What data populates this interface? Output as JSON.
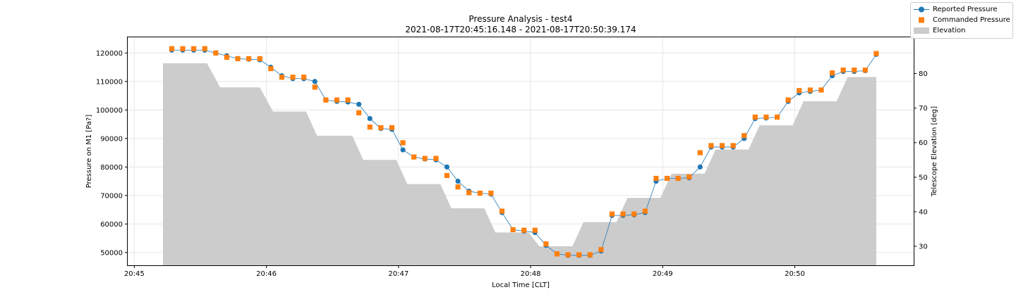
{
  "chart_data": {
    "type": "line",
    "title": "Pressure Analysis - test4",
    "subtitle": "2021-08-17T20:45:16.148 - 2021-08-17T20:50:39.174",
    "xlabel": "Local Time [CLT]",
    "ylabel": "Pressure on M1 [Pa?]",
    "y2label": "Telescope Elevation [deg]",
    "xlim": [
      "20:44:57",
      "20:50:54"
    ],
    "ylim": [
      45500,
      125500
    ],
    "y2lim": [
      24.5,
      90.5
    ],
    "xticks": [
      "20:45",
      "20:46",
      "20:47",
      "20:48",
      "20:49",
      "20:50"
    ],
    "yticks": [
      50000,
      60000,
      70000,
      80000,
      90000,
      100000,
      110000,
      120000
    ],
    "y2ticks": [
      30,
      40,
      50,
      60,
      70,
      80
    ],
    "grid": true,
    "legend_position": "top-right",
    "colors": {
      "reported": "#1f77b4",
      "commanded": "#ff7f0e",
      "elevation": "#cccccc"
    },
    "series": [
      {
        "name": "Reported Pressure",
        "marker": "circle",
        "style": "line-marker",
        "x": [
          "20:45:17",
          "20:45:22",
          "20:45:27",
          "20:45:32",
          "20:45:37",
          "20:45:42",
          "20:45:47",
          "20:45:52",
          "20:45:57",
          "20:46:02",
          "20:46:07",
          "20:46:12",
          "20:46:17",
          "20:46:22",
          "20:46:27",
          "20:46:32",
          "20:46:37",
          "20:46:42",
          "20:46:47",
          "20:46:52",
          "20:46:57",
          "20:47:02",
          "20:47:07",
          "20:47:12",
          "20:47:17",
          "20:47:22",
          "20:47:27",
          "20:47:32",
          "20:47:37",
          "20:47:42",
          "20:47:47",
          "20:47:52",
          "20:47:57",
          "20:48:02",
          "20:48:07",
          "20:48:12",
          "20:48:17",
          "20:48:22",
          "20:48:27",
          "20:48:32",
          "20:48:37",
          "20:48:42",
          "20:48:47",
          "20:48:52",
          "20:48:57",
          "20:49:02",
          "20:49:07",
          "20:49:12",
          "20:49:17",
          "20:49:22",
          "20:49:27",
          "20:49:32",
          "20:49:37",
          "20:49:42",
          "20:49:47",
          "20:49:52",
          "20:49:57",
          "20:50:02",
          "20:50:07",
          "20:50:12",
          "20:50:17",
          "20:50:22",
          "20:50:27",
          "20:50:32",
          "20:50:37"
        ],
        "y": [
          121000,
          121000,
          121000,
          121000,
          120000,
          119000,
          118000,
          117800,
          117600,
          115000,
          112000,
          111000,
          111000,
          110000,
          103500,
          103000,
          102800,
          102000,
          97000,
          93500,
          93200,
          86000,
          83500,
          82800,
          82500,
          80000,
          75000,
          71500,
          70800,
          70500,
          64000,
          58000,
          57500,
          57000,
          52500,
          49500,
          49000,
          49000,
          49000,
          50500,
          63000,
          63000,
          63200,
          64000,
          75000,
          76000,
          76000,
          76200,
          80000,
          87000,
          87000,
          87000,
          90000,
          97000,
          97200,
          97500,
          103000,
          106000,
          106500,
          107000,
          112000,
          113500,
          113500,
          113800,
          119500
        ]
      },
      {
        "name": "Commanded Pressure",
        "marker": "square",
        "style": "marker",
        "x": [
          "20:45:17",
          "20:45:22",
          "20:45:27",
          "20:45:32",
          "20:45:37",
          "20:45:42",
          "20:45:47",
          "20:45:52",
          "20:45:57",
          "20:46:02",
          "20:46:07",
          "20:46:12",
          "20:46:17",
          "20:46:22",
          "20:46:27",
          "20:46:32",
          "20:46:37",
          "20:46:42",
          "20:46:47",
          "20:46:52",
          "20:46:57",
          "20:47:02",
          "20:47:07",
          "20:47:12",
          "20:47:17",
          "20:47:22",
          "20:47:27",
          "20:47:32",
          "20:47:37",
          "20:47:42",
          "20:47:47",
          "20:47:52",
          "20:47:57",
          "20:48:02",
          "20:48:07",
          "20:48:12",
          "20:48:17",
          "20:48:22",
          "20:48:27",
          "20:48:32",
          "20:48:37",
          "20:48:42",
          "20:48:47",
          "20:48:52",
          "20:48:57",
          "20:49:02",
          "20:49:07",
          "20:49:12",
          "20:49:17",
          "20:49:22",
          "20:49:27",
          "20:49:32",
          "20:49:37",
          "20:49:42",
          "20:49:47",
          "20:49:52",
          "20:49:57",
          "20:50:02",
          "20:50:07",
          "20:50:12",
          "20:50:17",
          "20:50:22",
          "20:50:27",
          "20:50:32",
          "20:50:37"
        ],
        "y": [
          121500,
          121500,
          121500,
          121500,
          120000,
          118500,
          118000,
          118000,
          118000,
          114500,
          111500,
          111500,
          111500,
          108000,
          103500,
          103500,
          103500,
          99000,
          94000,
          93800,
          93800,
          88500,
          83500,
          83000,
          83000,
          77000,
          73000,
          71000,
          70800,
          70800,
          64500,
          58000,
          57800,
          57800,
          53000,
          49500,
          49200,
          49200,
          49200,
          51000,
          63500,
          63500,
          63500,
          64500,
          76000,
          76000,
          76000,
          76500,
          85000,
          87500,
          87500,
          87500,
          91000,
          97500,
          97500,
          97500,
          103500,
          106800,
          107000,
          107000,
          113000,
          114000,
          114000,
          114000,
          119800
        ]
      },
      {
        "name": "Elevation",
        "style": "area",
        "axis": "right",
        "x": [
          "20:45:13",
          "20:45:33",
          "20:45:39",
          "20:45:57",
          "20:46:03",
          "20:46:18",
          "20:46:23",
          "20:46:39",
          "20:46:44",
          "20:46:59",
          "20:47:04",
          "20:47:19",
          "20:47:24",
          "20:47:39",
          "20:47:44",
          "20:47:59",
          "20:48:04",
          "20:48:19",
          "20:48:24",
          "20:48:39",
          "20:48:44",
          "20:48:59",
          "20:49:04",
          "20:49:19",
          "20:49:24",
          "20:49:39",
          "20:49:44",
          "20:49:59",
          "20:50:04",
          "20:50:19",
          "20:50:24",
          "20:50:37"
        ],
        "y": [
          83,
          83,
          76,
          76,
          69,
          69,
          62,
          62,
          55,
          55,
          48,
          48,
          41,
          41,
          34,
          34,
          30,
          30,
          37,
          37,
          44,
          44,
          51,
          51,
          58,
          58,
          65,
          65,
          72,
          72,
          79,
          79
        ]
      }
    ]
  }
}
